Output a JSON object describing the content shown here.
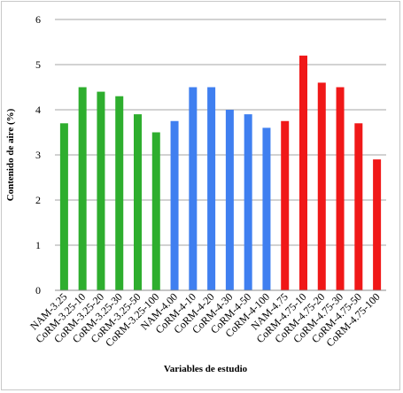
{
  "chart_data": {
    "type": "bar",
    "title": "",
    "xlabel": "Variables de estudio",
    "ylabel": "Contenido de aire (%)",
    "ylim": [
      0,
      6
    ],
    "yticks": [
      0,
      1,
      2,
      3,
      4,
      5,
      6
    ],
    "grid": true,
    "legend": "none",
    "categories": [
      "NAM-3.25",
      "CoRM-3.25-10",
      "CoRM-3.25-20",
      "CoRM-3.25-30",
      "CoRM-3.25-50",
      "CoRM-3.25-100",
      "NAM-4.00",
      "CoRM-4-10",
      "CoRM-4-20",
      "CoRM-4-30",
      "CoRM-4-50",
      "CoRM-4-100",
      "NAM-4.75",
      "CoRM-4.75-10",
      "CoRM-4.75-20",
      "CoRM-4.75-30",
      "CoRM-4.75-50",
      "CoRM-4.75-100"
    ],
    "values": [
      3.7,
      4.5,
      4.4,
      4.3,
      3.9,
      3.5,
      3.75,
      4.5,
      4.5,
      4.0,
      3.9,
      3.6,
      3.75,
      5.2,
      4.6,
      4.5,
      3.7,
      2.9
    ],
    "bar_colors": [
      "#2eae2e",
      "#2eae2e",
      "#2eae2e",
      "#2eae2e",
      "#2eae2e",
      "#2eae2e",
      "#3f7ff0",
      "#3f7ff0",
      "#3f7ff0",
      "#3f7ff0",
      "#3f7ff0",
      "#3f7ff0",
      "#f01818",
      "#f01818",
      "#f01818",
      "#f01818",
      "#f01818",
      "#f01818"
    ],
    "grid_color": "#a6a6a6"
  }
}
